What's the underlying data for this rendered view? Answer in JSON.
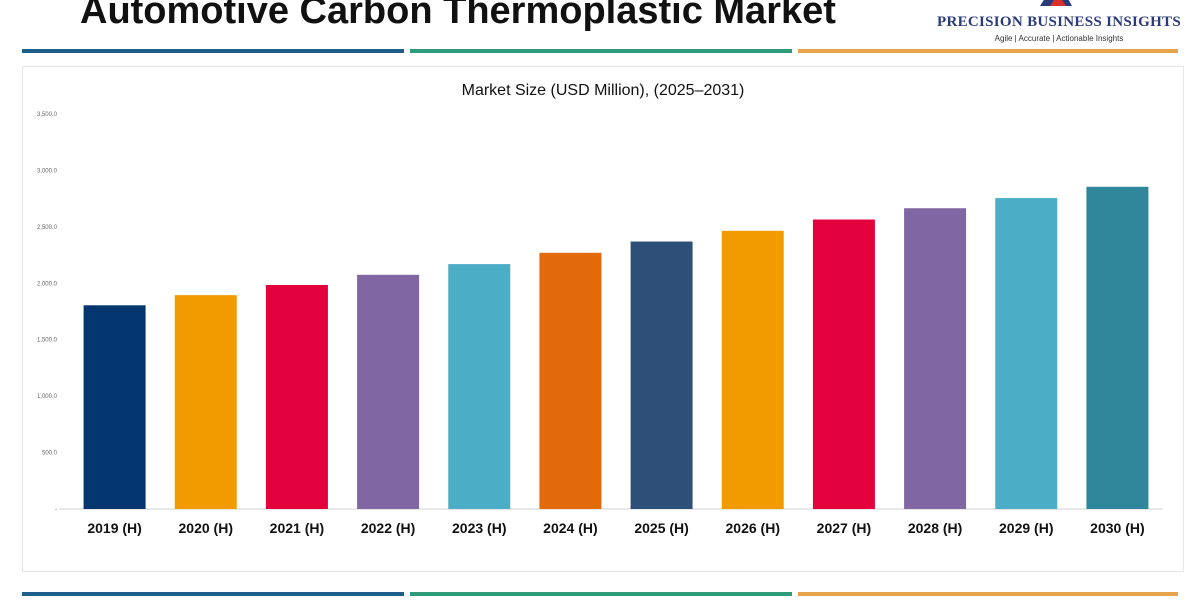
{
  "header": {
    "title": "Automotive Carbon Thermoplastic Market",
    "logo": {
      "name": "PRECISION BUSINESS INSIGHTS",
      "tagline": "Agile | Accurate | Actionable Insights",
      "colors": [
        "#2a3a7a",
        "#d9302a"
      ]
    }
  },
  "rule_colors": [
    "#1f5f8b",
    "#2f9b7a",
    "#e8a44a"
  ],
  "chart_data": {
    "type": "bar",
    "title": "Market Size (USD Million), (2025–2031)",
    "xlabel": "",
    "ylabel": "",
    "categories": [
      "2019 (H)",
      "2020 (H)",
      "2021 (H)",
      "2022 (H)",
      "2023 (H)",
      "2024 (H)",
      "2025 (H)",
      "2026 (H)",
      "2027 (H)",
      "2028 (H)",
      "2029 (H)",
      "2030 (H)"
    ],
    "values": [
      1805,
      1895,
      1985,
      2075,
      2170,
      2270,
      2370,
      2465,
      2565,
      2665,
      2755,
      2855
    ],
    "colors": [
      "#03356e",
      "#f19b00",
      "#e2003d",
      "#8066a2",
      "#4badc6",
      "#e26a0a",
      "#2e4f78",
      "#f19b00",
      "#e2003d",
      "#8066a2",
      "#4badc6",
      "#2f8599"
    ],
    "ylim": [
      0,
      3500
    ],
    "yticks": [
      {
        "value": 3500,
        "label": "3,500.0"
      },
      {
        "value": 3000,
        "label": "3,000.0"
      },
      {
        "value": 2500,
        "label": "2,500.0"
      },
      {
        "value": 2000,
        "label": "2,000.0"
      },
      {
        "value": 1500,
        "label": "1,500.0"
      },
      {
        "value": 1000,
        "label": "1,000.0"
      },
      {
        "value": 500,
        "label": "500.0"
      },
      {
        "value": 0,
        "label": "-"
      }
    ],
    "grid": false,
    "legend": "none"
  }
}
